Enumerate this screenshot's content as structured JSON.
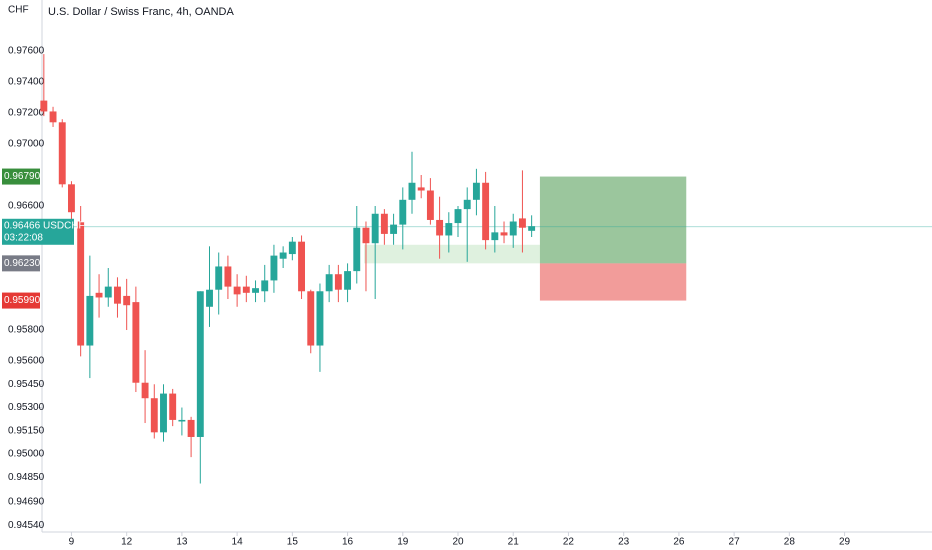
{
  "chart_data": {
    "type": "candlestick",
    "title": "U.S. Dollar / Swiss Franc, 4h, OANDA",
    "y_unit": "CHF",
    "x": [
      0,
      1,
      2,
      3,
      4,
      5,
      6,
      7,
      8,
      9,
      10,
      11,
      12,
      13,
      14,
      15,
      16,
      17,
      18,
      19,
      20,
      21,
      22,
      23,
      24,
      25,
      26,
      27,
      28,
      29,
      30,
      31,
      32,
      33,
      34,
      35,
      36,
      37,
      38,
      39,
      40,
      41,
      42,
      43,
      44,
      45,
      46,
      47,
      48,
      49,
      50,
      51,
      52,
      53
    ],
    "open": [
      0.9728,
      0.9721,
      0.9714,
      0.9674,
      0.965,
      0.957,
      0.9604,
      0.9601,
      0.9608,
      0.9602,
      0.9598,
      0.9546,
      0.9536,
      0.9514,
      0.9539,
      0.9521,
      0.9522,
      0.9511,
      0.9595,
      0.9606,
      0.9621,
      0.9608,
      0.9608,
      0.9604,
      0.9605,
      0.9612,
      0.9626,
      0.9629,
      0.9637,
      0.9605,
      0.957,
      0.9605,
      0.9616,
      0.9606,
      0.9618,
      0.9646,
      0.9636,
      0.9655,
      0.9642,
      0.9648,
      0.9664,
      0.9672,
      0.967,
      0.9651,
      0.9641,
      0.9649,
      0.9658,
      0.9664,
      0.9675,
      0.9638,
      0.9643,
      0.9641,
      0.9652,
      0.9644
    ],
    "high": [
      0.9758,
      0.9724,
      0.9716,
      0.9676,
      0.966,
      0.9628,
      0.9616,
      0.962,
      0.9614,
      0.9613,
      0.9608,
      0.9567,
      0.9545,
      0.9545,
      0.9542,
      0.953,
      0.9524,
      0.9605,
      0.9634,
      0.963,
      0.9628,
      0.9616,
      0.9615,
      0.9612,
      0.9622,
      0.9635,
      0.9634,
      0.964,
      0.9641,
      0.9606,
      0.961,
      0.9622,
      0.9622,
      0.9623,
      0.966,
      0.965,
      0.966,
      0.9658,
      0.9655,
      0.9672,
      0.9695,
      0.968,
      0.9678,
      0.9666,
      0.9656,
      0.966,
      0.9672,
      0.9684,
      0.9682,
      0.966,
      0.965,
      0.9655,
      0.9683,
      0.9654
    ],
    "low": [
      0.9718,
      0.9711,
      0.9672,
      0.965,
      0.9563,
      0.9549,
      0.9588,
      0.9595,
      0.9588,
      0.958,
      0.954,
      0.952,
      0.951,
      0.9508,
      0.9518,
      0.9512,
      0.9498,
      0.9481,
      0.9582,
      0.959,
      0.96,
      0.9595,
      0.9598,
      0.9598,
      0.9598,
      0.9604,
      0.962,
      0.9625,
      0.96,
      0.9565,
      0.9553,
      0.9598,
      0.9598,
      0.9598,
      0.961,
      0.9605,
      0.96,
      0.9635,
      0.9635,
      0.9632,
      0.9655,
      0.9665,
      0.9648,
      0.9626,
      0.963,
      0.964,
      0.9624,
      0.9654,
      0.9632,
      0.963,
      0.9636,
      0.9633,
      0.963,
      0.964
    ],
    "close": [
      0.9721,
      0.9714,
      0.9674,
      0.9656,
      0.957,
      0.9602,
      0.9601,
      0.9608,
      0.9597,
      0.9596,
      0.9546,
      0.9536,
      0.9514,
      0.9539,
      0.9522,
      0.9522,
      0.9511,
      0.9605,
      0.9606,
      0.9621,
      0.9608,
      0.9603,
      0.9604,
      0.9607,
      0.9612,
      0.9628,
      0.963,
      0.9637,
      0.9605,
      0.957,
      0.9605,
      0.9616,
      0.9606,
      0.9618,
      0.9646,
      0.9636,
      0.9655,
      0.9642,
      0.9648,
      0.9664,
      0.9675,
      0.967,
      0.9651,
      0.9641,
      0.9649,
      0.9658,
      0.9664,
      0.9675,
      0.9638,
      0.9643,
      0.9641,
      0.965,
      0.9646,
      0.9647
    ],
    "up_color": "#26a69a",
    "down_color": "#ef5350",
    "xlim": [
      -0.2,
      96.5
    ],
    "xticks": [
      {
        "value": 3,
        "label": "9"
      },
      {
        "value": 9,
        "label": "12"
      },
      {
        "value": 15,
        "label": "13"
      },
      {
        "value": 21,
        "label": "14"
      },
      {
        "value": 27,
        "label": "15"
      },
      {
        "value": 33,
        "label": "16"
      },
      {
        "value": 39,
        "label": "19"
      },
      {
        "value": 45,
        "label": "20"
      },
      {
        "value": 51,
        "label": "21"
      },
      {
        "value": 57,
        "label": "22"
      },
      {
        "value": 63,
        "label": "23"
      },
      {
        "value": 69,
        "label": "26"
      },
      {
        "value": 75,
        "label": "27"
      },
      {
        "value": 81,
        "label": "28"
      },
      {
        "value": 87,
        "label": "29"
      }
    ],
    "ylim": [
      0.94497,
      0.97929
    ],
    "yticks": [
      {
        "value": 0.976,
        "label": "0.97600"
      },
      {
        "value": 0.974,
        "label": "0.97400"
      },
      {
        "value": 0.972,
        "label": "0.97200"
      },
      {
        "value": 0.97,
        "label": "0.97000"
      },
      {
        "value": 0.966,
        "label": "0.96600"
      },
      {
        "value": 0.958,
        "label": "0.95800"
      },
      {
        "value": 0.956,
        "label": "0.95600"
      },
      {
        "value": 0.9545,
        "label": "0.95450"
      },
      {
        "value": 0.953,
        "label": "0.95300"
      },
      {
        "value": 0.9515,
        "label": "0.95150"
      },
      {
        "value": 0.95,
        "label": "0.95000"
      },
      {
        "value": 0.9485,
        "label": "0.94850"
      },
      {
        "value": 0.9469,
        "label": "0.94690"
      },
      {
        "value": 0.9454,
        "label": "0.94540"
      }
    ],
    "grid": false,
    "last_price": {
      "value": 0.96466,
      "label": "0.96466",
      "symbol": "USDCHF",
      "countdown": "03:22:08",
      "color": "#26a69a"
    },
    "position": {
      "x_from": 53.9,
      "x_to": 69.8,
      "target": {
        "value": 0.9679,
        "label": "0.96790",
        "color": "#388e3c"
      },
      "entry": {
        "value": 0.9623,
        "label": "0.96230",
        "color": "#787b86"
      },
      "stop": {
        "value": 0.9599,
        "label": "0.95990",
        "color": "#e53935"
      }
    },
    "zone": {
      "x_from": 34.8,
      "x_to": 53.9,
      "low": 0.9623,
      "high": 0.9635
    }
  }
}
